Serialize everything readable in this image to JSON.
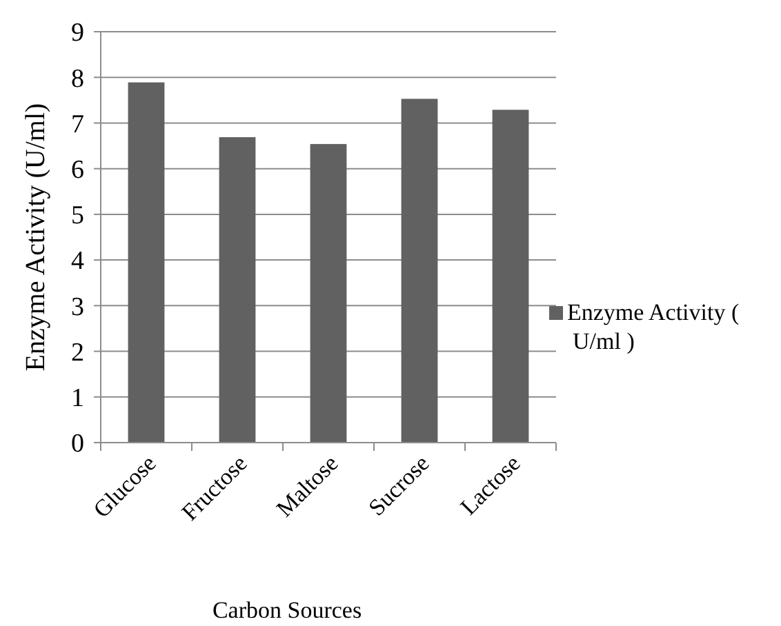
{
  "chart_data": {
    "type": "bar",
    "xlabel": "Carbon Sources",
    "ylabel": "Enzyme Activity (U/ml)",
    "categories": [
      "Glucose",
      "Fructose",
      "Maltose",
      "Sucrose",
      "Lactose"
    ],
    "series": [
      {
        "name": "Enzyme Activity ( U/ml )",
        "color": "#616161",
        "values": [
          7.89,
          6.69,
          6.54,
          7.53,
          7.29
        ]
      }
    ],
    "ylim": [
      0,
      9
    ],
    "yticks": [
      0,
      1,
      2,
      3,
      4,
      5,
      6,
      7,
      8,
      9
    ],
    "grid": "y",
    "legend": "right"
  }
}
